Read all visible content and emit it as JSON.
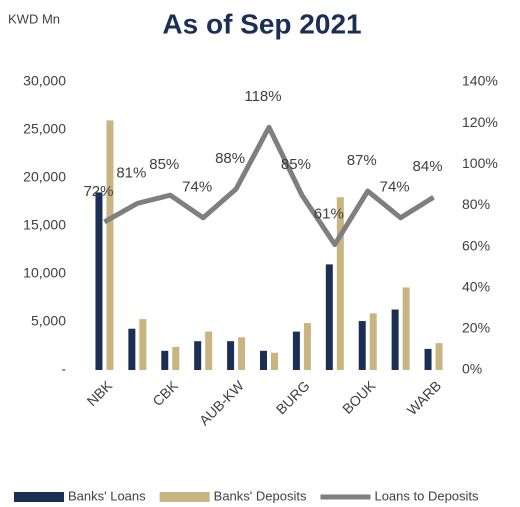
{
  "chart_data": {
    "type": "bar-line",
    "title": "As of Sep 2021",
    "y_label": "KWD Mn",
    "categories": [
      "NBK",
      null,
      "CBK",
      null,
      "AUB-KW",
      null,
      "BURG",
      null,
      "BOUK",
      null,
      "WARB"
    ],
    "series": [
      {
        "name": "Banks' Loans",
        "type": "bar",
        "color": "#1b2f55",
        "values": [
          18500,
          4300,
          2000,
          3000,
          3000,
          2000,
          4000,
          11000,
          5100,
          6300,
          2200
        ]
      },
      {
        "name": "Banks' Deposits",
        "type": "bar",
        "color": "#c9b482",
        "values": [
          26000,
          5300,
          2400,
          4000,
          3400,
          1800,
          4900,
          18000,
          5900,
          8600,
          2800
        ]
      },
      {
        "name": "Loans to Deposits",
        "type": "line",
        "axis": "y2",
        "color": "#7f7f7f",
        "values": [
          72,
          81,
          85,
          74,
          88,
          118,
          85,
          61,
          87,
          74,
          84
        ],
        "value_labels": [
          "72%",
          "81%",
          "85%",
          "74%",
          "88%",
          "118%",
          "85%",
          "61%",
          "87%",
          "74%",
          "84%"
        ]
      }
    ],
    "ylim": [
      0,
      30000
    ],
    "yticks": [
      {
        "value": 0,
        "label": "-"
      },
      {
        "value": 5000,
        "label": "5,000"
      },
      {
        "value": 10000,
        "label": "10,000"
      },
      {
        "value": 15000,
        "label": "15,000"
      },
      {
        "value": 20000,
        "label": "20,000"
      },
      {
        "value": 25000,
        "label": "25,000"
      },
      {
        "value": 30000,
        "label": "30,000"
      }
    ],
    "y2lim": [
      0,
      140
    ],
    "y2ticks": [
      {
        "value": 0,
        "label": "0%"
      },
      {
        "value": 20,
        "label": "20%"
      },
      {
        "value": 40,
        "label": "40%"
      },
      {
        "value": 60,
        "label": "60%"
      },
      {
        "value": 80,
        "label": "80%"
      },
      {
        "value": 100,
        "label": "100%"
      },
      {
        "value": 120,
        "label": "120%"
      },
      {
        "value": 140,
        "label": "140%"
      }
    ],
    "legend": "bottom"
  }
}
